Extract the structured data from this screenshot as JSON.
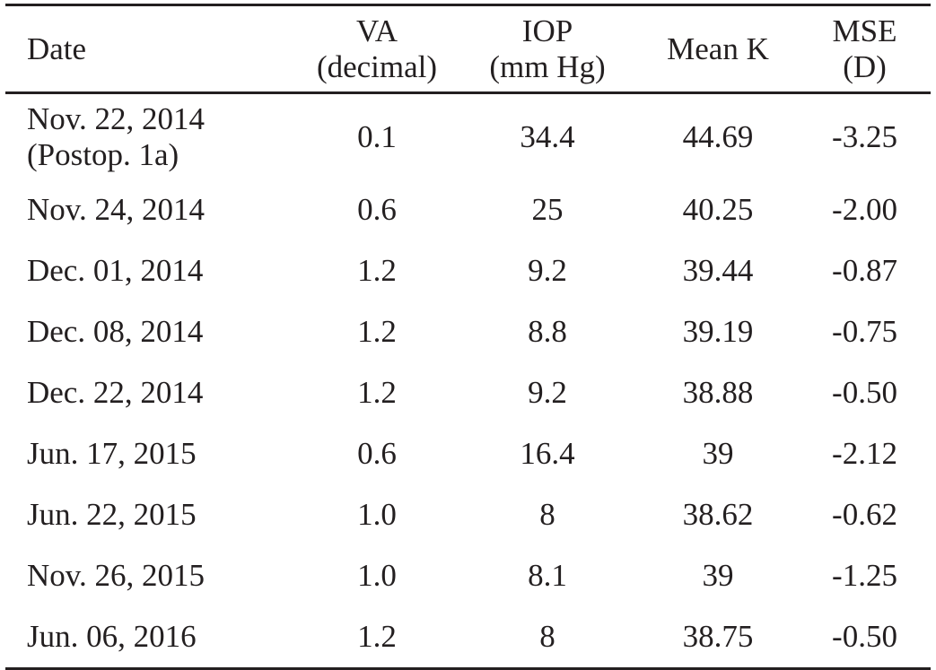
{
  "table": {
    "headers": [
      {
        "key": "date",
        "lines": [
          "Date"
        ]
      },
      {
        "key": "va",
        "lines": [
          "VA",
          "(decimal)"
        ]
      },
      {
        "key": "iop",
        "lines": [
          "IOP",
          "(mm Hg)"
        ]
      },
      {
        "key": "mean_k",
        "lines": [
          "Mean K"
        ]
      },
      {
        "key": "mse",
        "lines": [
          "MSE",
          "(D)"
        ]
      }
    ],
    "rows": [
      {
        "date": [
          "Nov. 22, 2014",
          "(Postop. 1a)"
        ],
        "va": "0.1",
        "iop": "34.4",
        "mean_k": "44.69",
        "mse": "-3.25"
      },
      {
        "date": [
          "Nov. 24, 2014"
        ],
        "va": "0.6",
        "iop": "25",
        "mean_k": "40.25",
        "mse": "-2.00"
      },
      {
        "date": [
          "Dec. 01, 2014"
        ],
        "va": "1.2",
        "iop": "9.2",
        "mean_k": "39.44",
        "mse": "-0.87"
      },
      {
        "date": [
          "Dec. 08, 2014"
        ],
        "va": "1.2",
        "iop": "8.8",
        "mean_k": "39.19",
        "mse": "-0.75"
      },
      {
        "date": [
          "Dec. 22, 2014"
        ],
        "va": "1.2",
        "iop": "9.2",
        "mean_k": "38.88",
        "mse": "-0.50"
      },
      {
        "date": [
          "Jun. 17, 2015"
        ],
        "va": "0.6",
        "iop": "16.4",
        "mean_k": "39",
        "mse": "-2.12"
      },
      {
        "date": [
          "Jun. 22, 2015"
        ],
        "va": "1.0",
        "iop": "8",
        "mean_k": "38.62",
        "mse": "-0.62"
      },
      {
        "date": [
          "Nov. 26, 2015"
        ],
        "va": "1.0",
        "iop": "8.1",
        "mean_k": "39",
        "mse": "-1.25"
      },
      {
        "date": [
          "Jun. 06, 2016"
        ],
        "va": "1.2",
        "iop": "8",
        "mean_k": "38.75",
        "mse": "-0.50"
      }
    ]
  }
}
